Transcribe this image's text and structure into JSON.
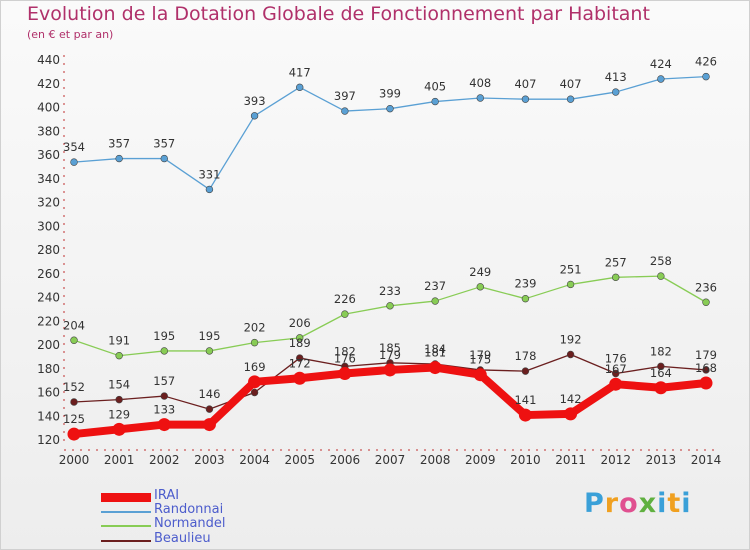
{
  "chart_data": {
    "type": "line",
    "title": "Evolution de la Dotation Globale de Fonctionnement par Habitant",
    "subtitle": "(en € et par an)",
    "xlabel": "",
    "ylabel": "",
    "ylim": [
      120,
      440
    ],
    "yticks": [
      120,
      140,
      160,
      180,
      200,
      220,
      240,
      260,
      280,
      300,
      320,
      340,
      360,
      380,
      400,
      420,
      440
    ],
    "x": [
      2000,
      2001,
      2002,
      2003,
      2004,
      2005,
      2006,
      2007,
      2008,
      2009,
      2010,
      2011,
      2012,
      2013,
      2014
    ],
    "legend_position": "bottom-left",
    "series": [
      {
        "name": "IRAI",
        "color": "#ee1111",
        "values": [
          125,
          129,
          133,
          133,
          169,
          172,
          176,
          179,
          181,
          175,
          141,
          142,
          167,
          164,
          168
        ],
        "labels": [
          "125",
          "129",
          "133",
          "",
          "169",
          "172",
          "176",
          "179",
          "181",
          "175",
          "141",
          "142",
          "167",
          "164",
          "168"
        ]
      },
      {
        "name": "Randonnai",
        "color": "#5aa0d4",
        "values": [
          354,
          357,
          357,
          331,
          393,
          417,
          397,
          399,
          405,
          408,
          407,
          407,
          413,
          424,
          426
        ],
        "labels": [
          "354",
          "357",
          "357",
          "331",
          "393",
          "417",
          "397",
          "399",
          "405",
          "408",
          "407",
          "407",
          "413",
          "424",
          "426"
        ]
      },
      {
        "name": "Normandel",
        "color": "#88cc55",
        "values": [
          204,
          191,
          195,
          195,
          202,
          206,
          226,
          233,
          237,
          249,
          239,
          251,
          257,
          258,
          236
        ],
        "labels": [
          "204",
          "191",
          "195",
          "195",
          "202",
          "206",
          "226",
          "233",
          "237",
          "249",
          "239",
          "251",
          "257",
          "258",
          "236"
        ]
      },
      {
        "name": "Beaulieu",
        "color": "#6b1f1f",
        "values": [
          152,
          154,
          157,
          146,
          160,
          189,
          182,
          185,
          184,
          179,
          178,
          192,
          176,
          182,
          179
        ],
        "labels": [
          "152",
          "154",
          "157",
          "146",
          "",
          "189",
          "182",
          "185",
          "184",
          "179",
          "178",
          "192",
          "176",
          "182",
          "179"
        ]
      }
    ]
  },
  "logo": {
    "p": "P",
    "r": "r",
    "o": "o",
    "x": "x",
    "i": "i",
    "t": "t",
    "i2": "i"
  }
}
